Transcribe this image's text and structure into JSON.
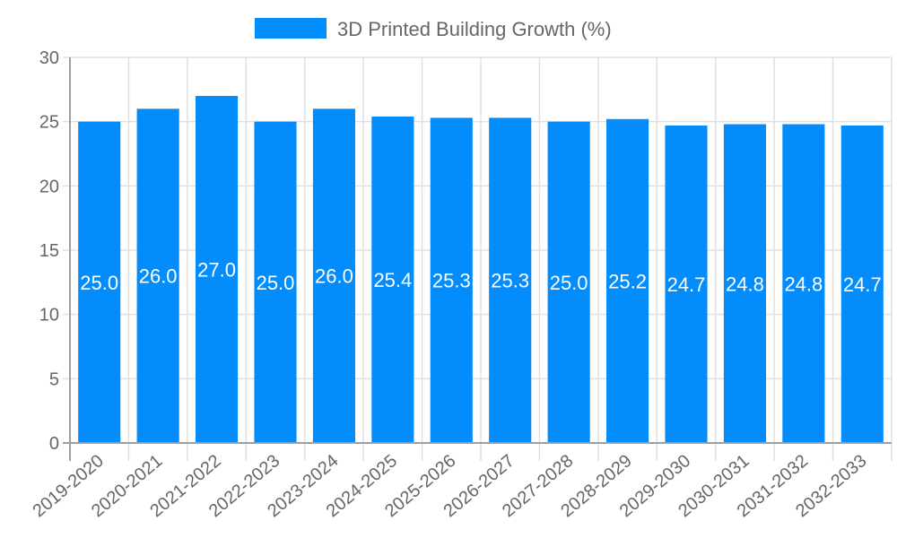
{
  "chart_data": {
    "type": "bar",
    "title": "",
    "xlabel": "",
    "ylabel": "",
    "ylim": [
      0,
      30
    ],
    "yticks": [
      0,
      5,
      10,
      15,
      20,
      25,
      30
    ],
    "grid": true,
    "legend_position": "top",
    "categories": [
      "2019-2020",
      "2020-2021",
      "2021-2022",
      "2022-2023",
      "2023-2024",
      "2024-2025",
      "2025-2026",
      "2026-2027",
      "2027-2028",
      "2028-2029",
      "2029-2030",
      "2030-2031",
      "2031-2032",
      "2032-2033"
    ],
    "series": [
      {
        "name": "3D Printed Building Growth (%)",
        "color": "#038cfc",
        "values": [
          25.0,
          26.0,
          27.0,
          25.0,
          26.0,
          25.4,
          25.3,
          25.3,
          25.0,
          25.2,
          24.7,
          24.8,
          24.8,
          24.7
        ],
        "data_labels": [
          "25.0",
          "26.0",
          "27.0",
          "25.0",
          "26.0",
          "25.4",
          "25.3",
          "25.3",
          "25.0",
          "25.2",
          "24.7",
          "24.8",
          "24.8",
          "24.7"
        ]
      }
    ]
  },
  "legend": {
    "label": "3D Printed Building Growth (%)",
    "color": "#038cfc"
  },
  "colors": {
    "grid": "#e0e0e0",
    "axis": "#9e9e9e",
    "tick_text": "#666666",
    "data_label": "#ffffff"
  }
}
